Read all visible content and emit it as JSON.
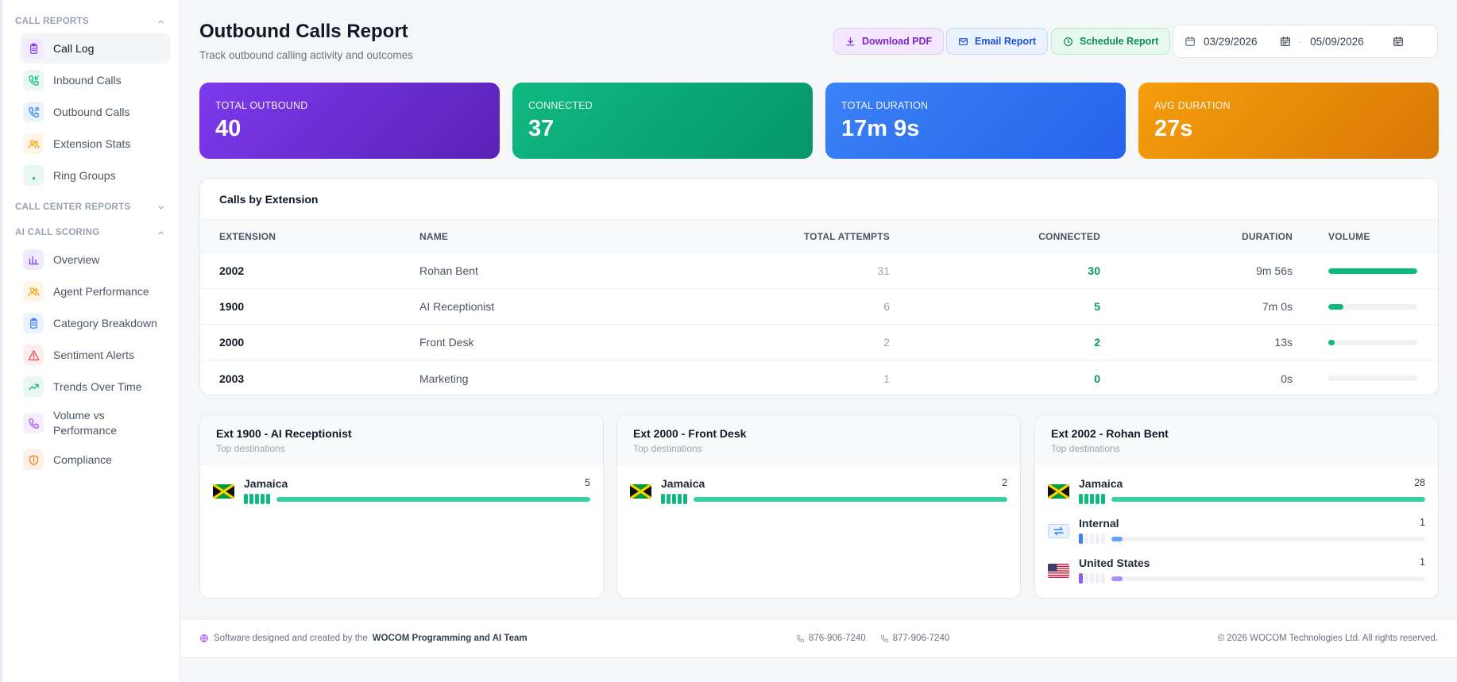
{
  "sidebar": {
    "sections": [
      {
        "title": "CALL REPORTS",
        "expanded": true,
        "items": [
          {
            "label": "Call Log",
            "icon": "clipboard-icon",
            "color": "#7c3aed",
            "bg": "#f1eafe",
            "active": true
          },
          {
            "label": "Inbound Calls",
            "icon": "phone-incoming-icon",
            "color": "#10b981",
            "bg": "#e8f8f0"
          },
          {
            "label": "Outbound Calls",
            "icon": "phone-outgoing-icon",
            "color": "#3b82f6",
            "bg": "#eaf2fe"
          },
          {
            "label": "Extension Stats",
            "icon": "users-icon",
            "color": "#f59e0b",
            "bg": "#fef5e6"
          },
          {
            "label": "Ring Groups",
            "icon": "ring-group-icon",
            "color": "#10b981",
            "bg": "#e8f8f0"
          }
        ]
      },
      {
        "title": "CALL CENTER REPORTS",
        "expanded": false,
        "items": []
      },
      {
        "title": "AI CALL SCORING",
        "expanded": true,
        "items": [
          {
            "label": "Overview",
            "icon": "bar-chart-icon",
            "color": "#7c3aed",
            "bg": "#f1eafe"
          },
          {
            "label": "Agent Performance",
            "icon": "users-icon",
            "color": "#f59e0b",
            "bg": "#fef5e6"
          },
          {
            "label": "Category Breakdown",
            "icon": "clipboard-icon",
            "color": "#3b82f6",
            "bg": "#eaf2fe"
          },
          {
            "label": "Sentiment Alerts",
            "icon": "alert-triangle-icon",
            "color": "#ef4444",
            "bg": "#fdecec"
          },
          {
            "label": "Trends Over Time",
            "icon": "trending-up-icon",
            "color": "#10b981",
            "bg": "#e8f8f0"
          },
          {
            "label": "Volume vs Performance",
            "icon": "phone-icon",
            "color": "#a855f7",
            "bg": "#f5ecfe"
          },
          {
            "label": "Compliance",
            "icon": "shield-icon",
            "color": "#f97316",
            "bg": "#fef0e6"
          }
        ]
      }
    ]
  },
  "header": {
    "title": "Outbound Calls Report",
    "subtitle": "Track outbound calling activity and outcomes",
    "buttons": {
      "pdf": "Download PDF",
      "email": "Email Report",
      "schedule": "Schedule Report"
    },
    "date_from": "03/29/2026",
    "date_sep": "-",
    "date_to": "05/09/2026"
  },
  "kpis": [
    {
      "label": "TOTAL OUTBOUND",
      "value": "40"
    },
    {
      "label": "CONNECTED",
      "value": "37"
    },
    {
      "label": "TOTAL DURATION",
      "value": "17m 9s"
    },
    {
      "label": "AVG DURATION",
      "value": "27s"
    }
  ],
  "extension_table": {
    "title": "Calls by Extension",
    "columns": [
      "EXTENSION",
      "NAME",
      "TOTAL ATTEMPTS",
      "CONNECTED",
      "DURATION",
      "VOLUME"
    ],
    "rows": [
      {
        "extension": "2002",
        "name": "Rohan Bent",
        "attempts": "31",
        "connected": "30",
        "duration": "9m 56s",
        "volume": 1.0
      },
      {
        "extension": "1900",
        "name": "AI Receptionist",
        "attempts": "6",
        "connected": "5",
        "duration": "7m 0s",
        "volume": 0.17
      },
      {
        "extension": "2000",
        "name": "Front Desk",
        "attempts": "2",
        "connected": "2",
        "duration": "13s",
        "volume": 0.07
      },
      {
        "extension": "2003",
        "name": "Marketing",
        "attempts": "1",
        "connected": "0",
        "duration": "0s",
        "volume": 0.0
      }
    ]
  },
  "destination_cards": [
    {
      "title": "Ext 1900 - AI Receptionist",
      "subtitle": "Top destinations",
      "destinations": [
        {
          "name": "Jamaica",
          "count": "5",
          "flag": "jamaica-flag",
          "share": 1.0,
          "segments": 5,
          "color": "#10b981",
          "bar_color": "#34d399"
        }
      ]
    },
    {
      "title": "Ext 2000 - Front Desk",
      "subtitle": "Top destinations",
      "destinations": [
        {
          "name": "Jamaica",
          "count": "2",
          "flag": "jamaica-flag",
          "share": 1.0,
          "segments": 5,
          "color": "#10b981",
          "bar_color": "#34d399"
        }
      ]
    },
    {
      "title": "Ext 2002 - Rohan Bent",
      "subtitle": "Top destinations",
      "destinations": [
        {
          "name": "Jamaica",
          "count": "28",
          "flag": "jamaica-flag",
          "share": 1.0,
          "segments": 5,
          "color": "#10b981",
          "bar_color": "#34d399"
        },
        {
          "name": "Internal",
          "count": "1",
          "flag": "internal-transfer-icon",
          "share": 0.036,
          "segments": 1,
          "color": "#3b82f6",
          "bar_color": "#60a5fa"
        },
        {
          "name": "United States",
          "count": "1",
          "flag": "us-flag",
          "share": 0.036,
          "segments": 1,
          "color": "#8b5cf6",
          "bar_color": "#a78bfa"
        }
      ]
    }
  ],
  "footer": {
    "left_prefix": "Software designed and created by the",
    "left_brand": "WOCOM Programming and AI Team",
    "phone1": "876-906-7240",
    "phone2": "877-906-7240",
    "copyright": "© 2026 WOCOM Technologies Ltd. All rights reserved."
  }
}
